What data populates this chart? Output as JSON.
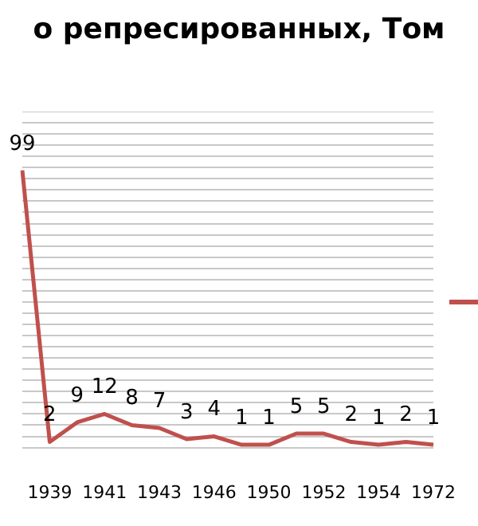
{
  "chart_data": {
    "type": "line",
    "title": "о репресированных, Том",
    "categories": [
      null,
      "1939",
      null,
      "1941",
      null,
      "1943",
      null,
      "1946",
      null,
      "1950",
      null,
      "1952",
      null,
      "1954",
      null,
      "1972"
    ],
    "series": [
      {
        "color": "#c0504d",
        "values": [
          99,
          2,
          9,
          12,
          8,
          7,
          3,
          4,
          1,
          1,
          5,
          5,
          2,
          1,
          2,
          1
        ]
      }
    ],
    "ylim": [
      0,
      120
    ],
    "yticks": [
      {
        "value": 0,
        "label": null
      },
      {
        "value": 4,
        "label": null
      },
      {
        "value": 8,
        "label": null
      },
      {
        "value": 12,
        "label": null
      },
      {
        "value": 16,
        "label": null
      },
      {
        "value": 20,
        "label": null
      },
      {
        "value": 24,
        "label": null
      },
      {
        "value": 28,
        "label": null
      },
      {
        "value": 32,
        "label": null
      },
      {
        "value": 36,
        "label": null
      },
      {
        "value": 40,
        "label": null
      },
      {
        "value": 44,
        "label": null
      },
      {
        "value": 48,
        "label": null
      },
      {
        "value": 52,
        "label": null
      },
      {
        "value": 56,
        "label": null
      },
      {
        "value": 60,
        "label": null
      },
      {
        "value": 64,
        "label": null
      },
      {
        "value": 68,
        "label": null
      },
      {
        "value": 72,
        "label": null
      },
      {
        "value": 76,
        "label": null
      },
      {
        "value": 80,
        "label": null
      },
      {
        "value": 84,
        "label": null
      },
      {
        "value": 88,
        "label": null
      },
      {
        "value": 92,
        "label": null
      },
      {
        "value": 96,
        "label": null
      },
      {
        "value": 100,
        "label": null
      },
      {
        "value": 104,
        "label": null
      },
      {
        "value": 108,
        "label": null
      },
      {
        "value": 112,
        "label": null
      },
      {
        "value": 116,
        "label": null
      },
      {
        "value": 120,
        "label": null
      }
    ],
    "grid": "y",
    "tick_labels": "x",
    "marker": "none",
    "line_style": "solid",
    "data_labels": true
  }
}
